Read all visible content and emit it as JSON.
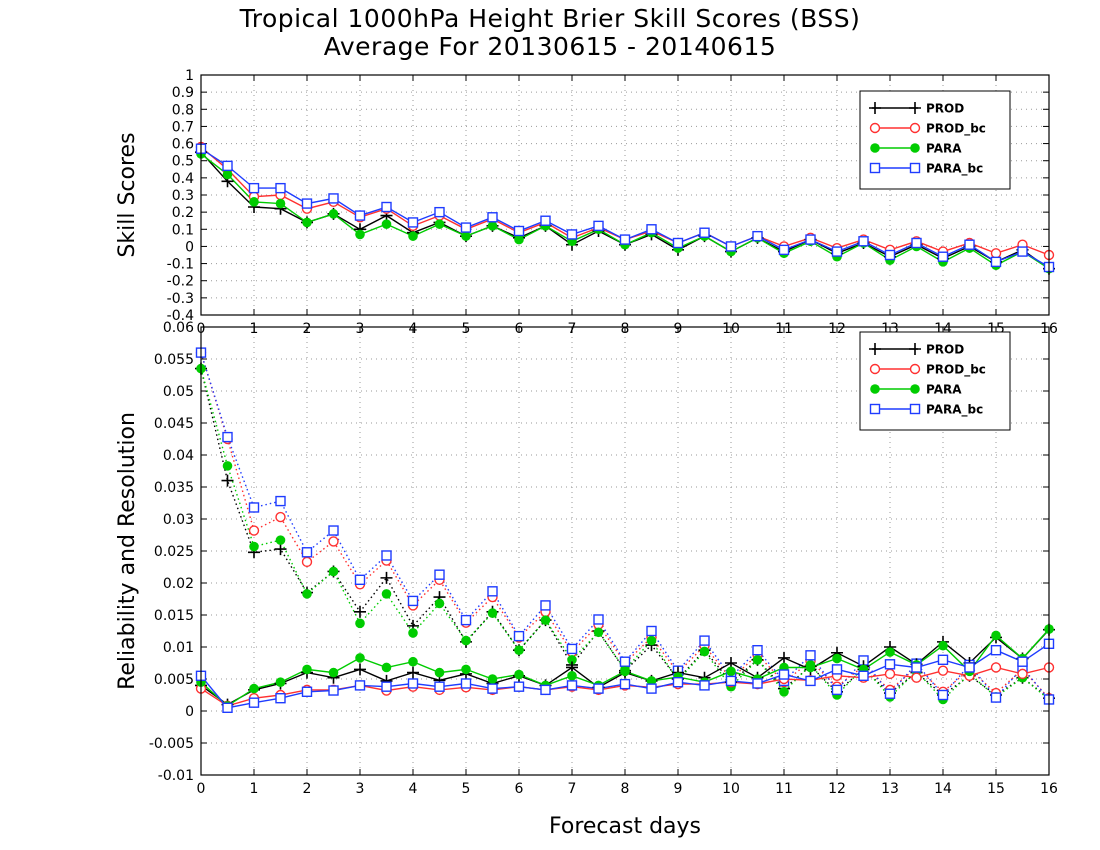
{
  "title_line1": "Tropical 1000hPa Height Brier Skill Scores (BSS)",
  "title_line2": "Average For 20130615 - 20140615",
  "colors": {
    "PROD": "#000000",
    "PROD_bc": "#ff3030",
    "PARA": "#00cc00",
    "PARA_bc": "#1e3cff"
  },
  "chart_data": [
    {
      "type": "line",
      "ylabel": "Skill Scores",
      "xlabel": "",
      "xlim": [
        0,
        16
      ],
      "ylim": [
        -0.4,
        1
      ],
      "yticks": [
        "-0.4",
        "-0.3",
        "-0.2",
        "-0.1",
        "0",
        "0.1",
        "0.2",
        "0.3",
        "0.4",
        "0.5",
        "0.6",
        "0.7",
        "0.8",
        "0.9",
        "1"
      ],
      "xticks": [
        "0",
        "1",
        "2",
        "3",
        "4",
        "5",
        "6",
        "7",
        "8",
        "9",
        "10",
        "11",
        "12",
        "13",
        "14",
        "15",
        "16"
      ],
      "grid": true,
      "legend_position": "top-right",
      "x": [
        0,
        0.5,
        1,
        1.5,
        2,
        2.5,
        3,
        3.5,
        4,
        4.5,
        5,
        5.5,
        6,
        6.5,
        7,
        7.5,
        8,
        8.5,
        9,
        9.5,
        10,
        10.5,
        11,
        11.5,
        12,
        12.5,
        13,
        13.5,
        14,
        14.5,
        15,
        15.5,
        16
      ],
      "series": [
        {
          "name": "PROD",
          "marker": "plus",
          "values": [
            0.55,
            0.38,
            0.23,
            0.22,
            0.14,
            0.19,
            0.1,
            0.18,
            0.08,
            0.14,
            0.06,
            0.12,
            0.05,
            0.12,
            0.01,
            0.09,
            0.01,
            0.07,
            -0.02,
            0.06,
            -0.03,
            0.05,
            -0.03,
            0.04,
            -0.04,
            0.02,
            -0.06,
            0.01,
            -0.07,
            0.0,
            -0.09,
            -0.02,
            -0.13
          ]
        },
        {
          "name": "PROD_bc",
          "marker": "open-circle",
          "values": [
            0.58,
            0.45,
            0.29,
            0.3,
            0.22,
            0.26,
            0.17,
            0.22,
            0.12,
            0.18,
            0.1,
            0.16,
            0.08,
            0.14,
            0.05,
            0.11,
            0.04,
            0.09,
            0.02,
            0.08,
            0.0,
            0.06,
            0.0,
            0.05,
            -0.01,
            0.04,
            -0.02,
            0.03,
            -0.03,
            0.02,
            -0.04,
            0.01,
            -0.05
          ]
        },
        {
          "name": "PARA",
          "marker": "filled-circle",
          "values": [
            0.54,
            0.42,
            0.26,
            0.25,
            0.14,
            0.19,
            0.07,
            0.13,
            0.06,
            0.13,
            0.06,
            0.12,
            0.04,
            0.12,
            0.03,
            0.1,
            0.01,
            0.08,
            -0.01,
            0.06,
            -0.03,
            0.05,
            -0.04,
            0.03,
            -0.06,
            0.02,
            -0.08,
            0.0,
            -0.09,
            -0.01,
            -0.11,
            -0.03,
            -0.13
          ]
        },
        {
          "name": "PARA_bc",
          "marker": "open-square",
          "values": [
            0.57,
            0.47,
            0.34,
            0.34,
            0.25,
            0.28,
            0.18,
            0.23,
            0.14,
            0.2,
            0.11,
            0.17,
            0.09,
            0.15,
            0.07,
            0.12,
            0.04,
            0.1,
            0.02,
            0.08,
            0.0,
            0.06,
            -0.02,
            0.04,
            -0.03,
            0.03,
            -0.05,
            0.02,
            -0.06,
            0.01,
            -0.09,
            -0.03,
            -0.12
          ]
        }
      ]
    },
    {
      "type": "line",
      "ylabel": "Reliability and Resolution",
      "xlabel": "Forecast days",
      "xlim": [
        0,
        16
      ],
      "ylim": [
        -0.01,
        0.06
      ],
      "yticks": [
        "-0.01",
        "-0.005",
        "0",
        "0.005",
        "0.01",
        "0.015",
        "0.02",
        "0.025",
        "0.03",
        "0.035",
        "0.04",
        "0.045",
        "0.05",
        "0.055",
        "0.06"
      ],
      "xticks": [
        "0",
        "1",
        "2",
        "3",
        "4",
        "5",
        "6",
        "7",
        "8",
        "9",
        "10",
        "11",
        "12",
        "13",
        "14",
        "15",
        "16"
      ],
      "grid": true,
      "legend_position": "top-right",
      "x": [
        0,
        0.5,
        1,
        1.5,
        2,
        2.5,
        3,
        3.5,
        4,
        4.5,
        5,
        5.5,
        6,
        6.5,
        7,
        7.5,
        8,
        8.5,
        9,
        9.5,
        10,
        10.5,
        11,
        11.5,
        12,
        12.5,
        13,
        13.5,
        14,
        14.5,
        15,
        15.5,
        16
      ],
      "series": [
        {
          "name": "PROD",
          "group": "resolution",
          "style": "dotted",
          "marker": "plus",
          "values": [
            0.0535,
            0.036,
            0.0248,
            0.0253,
            0.0185,
            0.0218,
            0.0155,
            0.0208,
            0.0133,
            0.0178,
            0.0108,
            0.0155,
            0.0095,
            0.0142,
            0.0072,
            0.0125,
            0.0063,
            0.0103,
            0.005,
            0.0095,
            0.0045,
            0.008,
            0.0035,
            0.007,
            0.003,
            0.0065,
            0.0028,
            0.006,
            0.0025,
            0.0055,
            0.0025,
            0.0052,
            0.002
          ]
        },
        {
          "name": "PROD_bc",
          "group": "resolution",
          "style": "dotted",
          "marker": "open-circle",
          "values": [
            0.056,
            0.0425,
            0.0282,
            0.0303,
            0.0233,
            0.0265,
            0.0198,
            0.0235,
            0.0165,
            0.0205,
            0.0138,
            0.0178,
            0.0115,
            0.0155,
            0.0092,
            0.0135,
            0.0075,
            0.0115,
            0.006,
            0.0102,
            0.005,
            0.0088,
            0.0045,
            0.0078,
            0.0038,
            0.007,
            0.0033,
            0.0068,
            0.003,
            0.0065,
            0.0028,
            0.0065,
            0.002
          ]
        },
        {
          "name": "PARA",
          "group": "resolution",
          "style": "dotted",
          "marker": "filled-circle",
          "values": [
            0.0535,
            0.0383,
            0.0257,
            0.0267,
            0.0183,
            0.0218,
            0.0137,
            0.0183,
            0.0122,
            0.0168,
            0.011,
            0.0153,
            0.0095,
            0.0142,
            0.008,
            0.0123,
            0.0065,
            0.011,
            0.0048,
            0.0093,
            0.0038,
            0.008,
            0.003,
            0.0072,
            0.0025,
            0.0068,
            0.0022,
            0.0062,
            0.0018,
            0.0058,
            0.0022,
            0.0052,
            0.0018
          ]
        },
        {
          "name": "PARA_bc",
          "group": "resolution",
          "style": "dotted",
          "marker": "open-square",
          "values": [
            0.056,
            0.0428,
            0.0318,
            0.0328,
            0.0248,
            0.0282,
            0.0205,
            0.0243,
            0.0172,
            0.0213,
            0.0142,
            0.0187,
            0.0117,
            0.0165,
            0.0097,
            0.0143,
            0.0077,
            0.0125,
            0.0063,
            0.011,
            0.0053,
            0.0095,
            0.0047,
            0.0087,
            0.0033,
            0.0079,
            0.0027,
            0.0074,
            0.0025,
            0.0072,
            0.0021,
            0.0068,
            0.0018
          ]
        },
        {
          "name": "PROD",
          "group": "reliability",
          "style": "solid",
          "marker": "plus",
          "values": [
            0.004,
            0.001,
            0.0033,
            0.0043,
            0.006,
            0.0052,
            0.0065,
            0.0047,
            0.006,
            0.0048,
            0.0058,
            0.0043,
            0.0055,
            0.004,
            0.0068,
            0.0037,
            0.006,
            0.0047,
            0.006,
            0.0052,
            0.0075,
            0.0052,
            0.0083,
            0.0065,
            0.0091,
            0.007,
            0.01,
            0.0073,
            0.0108,
            0.0075,
            0.0115,
            0.0082,
            0.0127
          ]
        },
        {
          "name": "PROD_bc",
          "group": "reliability",
          "style": "solid",
          "marker": "open-circle",
          "values": [
            0.0035,
            0.0008,
            0.002,
            0.0025,
            0.0033,
            0.0033,
            0.004,
            0.0032,
            0.0038,
            0.0033,
            0.0037,
            0.0033,
            0.0038,
            0.0033,
            0.0038,
            0.0033,
            0.004,
            0.0037,
            0.0042,
            0.0042,
            0.0045,
            0.0042,
            0.005,
            0.0048,
            0.0055,
            0.0052,
            0.0058,
            0.0052,
            0.0063,
            0.0055,
            0.0068,
            0.0058,
            0.0068
          ]
        },
        {
          "name": "PARA",
          "group": "reliability",
          "style": "solid",
          "marker": "filled-circle",
          "values": [
            0.0045,
            0.0008,
            0.0035,
            0.0045,
            0.0065,
            0.006,
            0.0083,
            0.0068,
            0.0077,
            0.006,
            0.0065,
            0.005,
            0.0057,
            0.004,
            0.0055,
            0.004,
            0.0062,
            0.0047,
            0.0053,
            0.0045,
            0.0062,
            0.005,
            0.0068,
            0.0068,
            0.0082,
            0.0065,
            0.0092,
            0.0072,
            0.0102,
            0.0062,
            0.0118,
            0.0082,
            0.0128
          ]
        },
        {
          "name": "PARA_bc",
          "group": "reliability",
          "style": "solid",
          "marker": "open-square",
          "values": [
            0.0055,
            0.0005,
            0.0013,
            0.002,
            0.003,
            0.0032,
            0.004,
            0.0038,
            0.0043,
            0.0038,
            0.0043,
            0.0035,
            0.0038,
            0.0033,
            0.004,
            0.0035,
            0.0042,
            0.0035,
            0.0045,
            0.004,
            0.0047,
            0.0043,
            0.0057,
            0.0047,
            0.0065,
            0.0055,
            0.0073,
            0.0068,
            0.008,
            0.0068,
            0.0095,
            0.0077,
            0.0105
          ]
        }
      ]
    }
  ]
}
